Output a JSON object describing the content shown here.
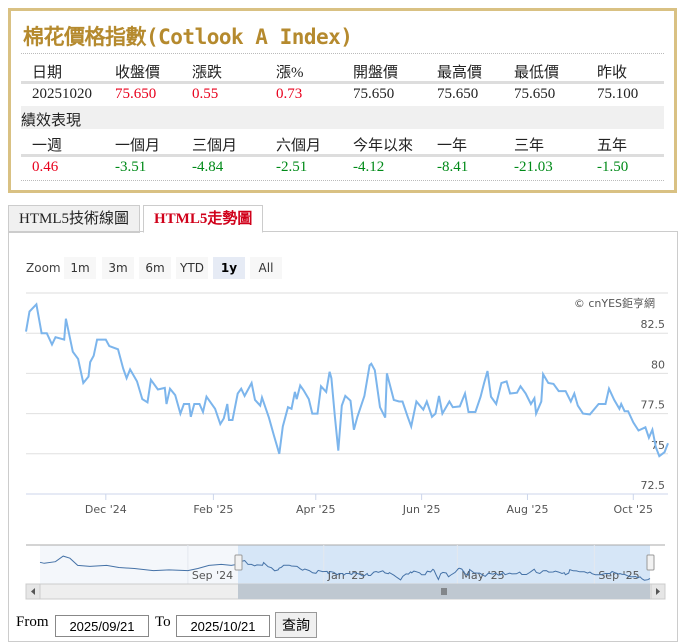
{
  "quote_box": {
    "title": "棉花價格指數(Cotlook A Index)",
    "headers": [
      "日期",
      "收盤價",
      "漲跌",
      "漲%",
      "開盤價",
      "最高價",
      "最低價",
      "昨收"
    ],
    "values": [
      "20251020",
      "75.650",
      "0.55",
      "0.73",
      "75.650",
      "75.650",
      "75.650",
      "75.100"
    ],
    "performance_label": "績效表現",
    "perf_headers": [
      "一週",
      "一個月",
      "三個月",
      "六個月",
      "今年以來",
      "一年",
      "三年",
      "五年"
    ],
    "perf_values": [
      "0.46",
      "-3.51",
      "-4.84",
      "-2.51",
      "-4.12",
      "-8.41",
      "-21.03",
      "-1.50"
    ],
    "colors": {
      "title": "#b58a2e",
      "up": "#e8001c",
      "down": "#008a18",
      "border": "#d9c183"
    }
  },
  "tabs": [
    {
      "label": "HTML5技術線圖",
      "active": false
    },
    {
      "label": "HTML5走勢圖",
      "active": true
    }
  ],
  "zoom": {
    "label": "Zoom",
    "buttons": [
      "1m",
      "3m",
      "6m",
      "YTD",
      "1y",
      "All"
    ],
    "selected": "1y"
  },
  "credit": "© cnYES鉅亨網",
  "range": {
    "from_label": "From",
    "from": "2025/09/21",
    "to_label": "To",
    "to": "2025/10/21",
    "query_button": "查詢"
  },
  "chart_data": {
    "type": "line",
    "line_color": "#7cb5ec",
    "y_ticks": [
      "72.5",
      "75",
      "77.5",
      "80",
      "82.5"
    ],
    "ylim": [
      72.5,
      85
    ],
    "x_ticks": [
      {
        "date": "2024-12-01",
        "label": "Dec '24"
      },
      {
        "date": "2025-02-01",
        "label": "Feb '25"
      },
      {
        "date": "2025-04-01",
        "label": "Apr '25"
      },
      {
        "date": "2025-06-01",
        "label": "Jun '25"
      },
      {
        "date": "2025-08-01",
        "label": "Aug '25"
      },
      {
        "date": "2025-10-01",
        "label": "Oct '25"
      }
    ],
    "xlim": [
      "2024-10-16",
      "2025-10-21"
    ],
    "grid": true,
    "series": [
      {
        "points": [
          [
            "2024-10-16",
            82.6
          ],
          [
            "2024-10-18",
            83.85
          ],
          [
            "2024-10-22",
            84.3
          ],
          [
            "2024-10-25",
            82.5
          ],
          [
            "2024-10-28",
            82.5
          ],
          [
            "2024-10-31",
            81.8
          ],
          [
            "2024-11-02",
            82.25
          ],
          [
            "2024-11-07",
            82.1
          ],
          [
            "2024-11-08",
            83.4
          ],
          [
            "2024-11-12",
            81.35
          ],
          [
            "2024-11-15",
            80.9
          ],
          [
            "2024-11-18",
            79.4
          ],
          [
            "2024-11-21",
            79.8
          ],
          [
            "2024-11-22",
            80.7
          ],
          [
            "2024-11-24",
            81.1
          ],
          [
            "2024-11-26",
            82.1
          ],
          [
            "2024-12-01",
            82.1
          ],
          [
            "2024-12-03",
            81.7
          ],
          [
            "2024-12-08",
            81.5
          ],
          [
            "2024-12-11",
            80.3
          ],
          [
            "2024-12-13",
            79.7
          ],
          [
            "2024-12-15",
            80.25
          ],
          [
            "2024-12-19",
            79.5
          ],
          [
            "2024-12-22",
            78.4
          ],
          [
            "2024-12-25",
            78.2
          ],
          [
            "2024-12-27",
            79.6
          ],
          [
            "2024-12-31",
            79.0
          ],
          [
            "2025-01-04",
            79.1
          ],
          [
            "2025-01-05",
            78.1
          ],
          [
            "2025-01-07",
            79.05
          ],
          [
            "2025-01-10",
            78.65
          ],
          [
            "2025-01-13",
            77.5
          ],
          [
            "2025-01-15",
            78.1
          ],
          [
            "2025-01-18",
            78.1
          ],
          [
            "2025-01-19",
            77.3
          ],
          [
            "2025-01-21",
            78.1
          ],
          [
            "2025-01-24",
            78.1
          ],
          [
            "2025-01-26",
            77.6
          ],
          [
            "2025-01-28",
            78.55
          ],
          [
            "2025-02-02",
            77.8
          ],
          [
            "2025-02-05",
            76.85
          ],
          [
            "2025-02-07",
            77.2
          ],
          [
            "2025-02-09",
            78.1
          ],
          [
            "2025-02-10",
            77.1
          ],
          [
            "2025-02-12",
            77.1
          ],
          [
            "2025-02-15",
            78.75
          ],
          [
            "2025-02-17",
            79.05
          ],
          [
            "2025-02-19",
            78.6
          ],
          [
            "2025-02-23",
            79.4
          ],
          [
            "2025-02-25",
            78.35
          ],
          [
            "2025-02-28",
            78.0
          ],
          [
            "2025-03-01",
            78.5
          ],
          [
            "2025-03-05",
            77.25
          ],
          [
            "2025-03-08",
            76.1
          ],
          [
            "2025-03-11",
            75.0
          ],
          [
            "2025-03-13",
            76.7
          ],
          [
            "2025-03-16",
            77.9
          ],
          [
            "2025-03-18",
            77.8
          ],
          [
            "2025-03-20",
            78.85
          ],
          [
            "2025-03-21",
            78.4
          ],
          [
            "2025-03-23",
            79.25
          ],
          [
            "2025-03-25",
            78.95
          ],
          [
            "2025-03-28",
            78.4
          ],
          [
            "2025-03-30",
            77.5
          ],
          [
            "2025-04-02",
            77.5
          ],
          [
            "2025-04-04",
            79.2
          ],
          [
            "2025-04-07",
            78.85
          ],
          [
            "2025-04-09",
            80.1
          ],
          [
            "2025-04-10",
            79.7
          ],
          [
            "2025-04-12",
            77.3
          ],
          [
            "2025-04-14",
            75.2
          ],
          [
            "2025-04-16",
            78.0
          ],
          [
            "2025-04-18",
            78.6
          ],
          [
            "2025-04-21",
            78.3
          ],
          [
            "2025-04-23",
            76.5
          ],
          [
            "2025-04-25",
            77.3
          ],
          [
            "2025-04-29",
            78.6
          ],
          [
            "2025-05-02",
            80.5
          ],
          [
            "2025-05-03",
            80.6
          ],
          [
            "2025-05-05",
            80.2
          ],
          [
            "2025-05-08",
            77.9
          ],
          [
            "2025-05-11",
            77.25
          ],
          [
            "2025-05-12",
            80.0
          ],
          [
            "2025-05-16",
            78.35
          ],
          [
            "2025-05-19",
            78.25
          ],
          [
            "2025-05-21",
            78.25
          ],
          [
            "2025-05-24",
            77.3
          ],
          [
            "2025-05-26",
            76.7
          ],
          [
            "2025-05-29",
            78.25
          ],
          [
            "2025-06-02",
            77.75
          ],
          [
            "2025-06-04",
            78.25
          ],
          [
            "2025-06-07",
            77.3
          ],
          [
            "2025-06-09",
            77.5
          ],
          [
            "2025-06-11",
            78.6
          ],
          [
            "2025-06-13",
            77.5
          ],
          [
            "2025-06-17",
            78.25
          ],
          [
            "2025-06-19",
            77.9
          ],
          [
            "2025-06-23",
            77.95
          ],
          [
            "2025-06-26",
            78.75
          ],
          [
            "2025-06-28",
            77.6
          ],
          [
            "2025-07-02",
            77.6
          ],
          [
            "2025-07-05",
            78.55
          ],
          [
            "2025-07-07",
            79.4
          ],
          [
            "2025-07-09",
            80.15
          ],
          [
            "2025-07-11",
            78.55
          ],
          [
            "2025-07-14",
            78.1
          ],
          [
            "2025-07-17",
            79.4
          ],
          [
            "2025-07-20",
            79.5
          ],
          [
            "2025-07-22",
            78.75
          ],
          [
            "2025-07-26",
            78.8
          ],
          [
            "2025-07-28",
            79.2
          ],
          [
            "2025-07-31",
            78.75
          ],
          [
            "2025-08-03",
            78.1
          ],
          [
            "2025-08-05",
            78.45
          ],
          [
            "2025-08-06",
            77.5
          ],
          [
            "2025-08-09",
            78.25
          ],
          [
            "2025-08-10",
            79.95
          ],
          [
            "2025-08-13",
            79.4
          ],
          [
            "2025-08-16",
            79.35
          ],
          [
            "2025-08-19",
            78.9
          ],
          [
            "2025-08-23",
            78.9
          ],
          [
            "2025-08-26",
            78.25
          ],
          [
            "2025-08-28",
            78.75
          ],
          [
            "2025-08-30",
            78.0
          ],
          [
            "2025-09-02",
            77.5
          ],
          [
            "2025-09-06",
            77.45
          ],
          [
            "2025-09-11",
            78.1
          ],
          [
            "2025-09-15",
            78.1
          ],
          [
            "2025-09-17",
            79.05
          ],
          [
            "2025-09-20",
            78.35
          ],
          [
            "2025-09-23",
            77.8
          ],
          [
            "2025-09-24",
            78.1
          ],
          [
            "2025-09-26",
            77.65
          ],
          [
            "2025-09-28",
            77.65
          ],
          [
            "2025-10-01",
            76.95
          ],
          [
            "2025-10-04",
            76.45
          ],
          [
            "2025-10-08",
            76.65
          ],
          [
            "2025-10-10",
            76.0
          ],
          [
            "2025-10-12",
            76.5
          ],
          [
            "2025-10-14",
            75.4
          ],
          [
            "2025-10-16",
            74.85
          ],
          [
            "2025-10-19",
            75.1
          ],
          [
            "2025-10-21",
            75.65
          ]
        ]
      }
    ],
    "navigator": {
      "x_ticks": [
        {
          "date": "2024-09-01",
          "label": "Sep '24"
        },
        {
          "date": "2025-01-01",
          "label": "Jan '25"
        },
        {
          "date": "2025-05-01",
          "label": "May '25"
        },
        {
          "date": "2025-09-01",
          "label": "Sep '25"
        }
      ],
      "selected_range": [
        "2024-10-16",
        "2025-10-21"
      ],
      "history_before_selection": [
        [
          "2024-04-18",
          83.5
        ],
        [
          "2024-04-25",
          83.0
        ],
        [
          "2024-05-05",
          83.8
        ],
        [
          "2024-05-12",
          86.5
        ],
        [
          "2024-05-18",
          85.5
        ],
        [
          "2024-05-25",
          82.0
        ],
        [
          "2024-06-05",
          81.5
        ],
        [
          "2024-06-20",
          82.0
        ],
        [
          "2024-07-01",
          81.0
        ],
        [
          "2024-07-15",
          80.5
        ],
        [
          "2024-08-01",
          79.5
        ],
        [
          "2024-08-15",
          79.8
        ],
        [
          "2024-09-01",
          79.5
        ],
        [
          "2024-09-10",
          80.5
        ],
        [
          "2024-09-20",
          82.0
        ],
        [
          "2024-10-01",
          82.5
        ],
        [
          "2024-10-10",
          82.0
        ]
      ]
    }
  }
}
